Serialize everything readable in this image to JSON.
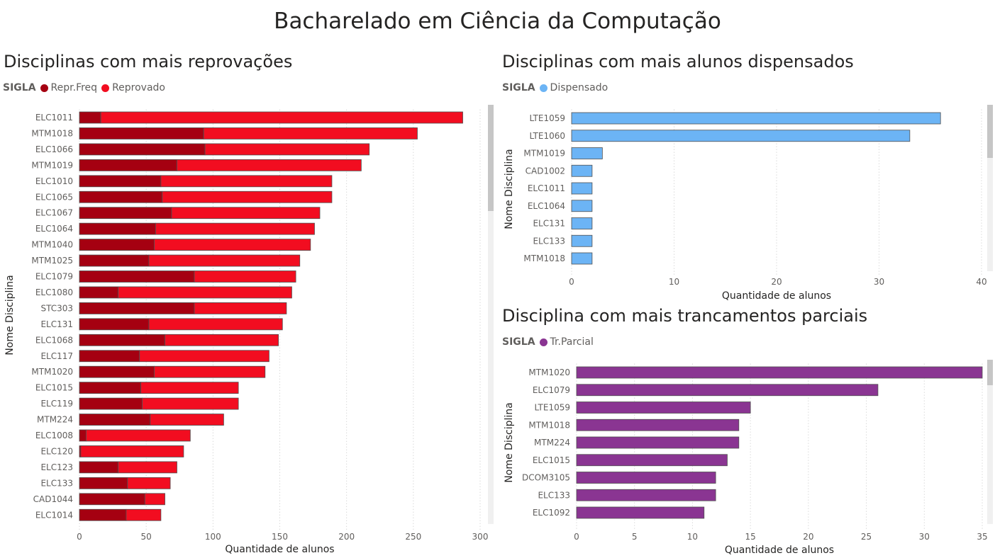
{
  "page": {
    "title": "Bacharelado em Ciência da Computação"
  },
  "chart_data": [
    {
      "type": "bar",
      "orientation": "horizontal",
      "stacked": true,
      "title": "Disciplinas com mais reprovações",
      "legend_title": "SIGLA",
      "legend_position": "top-left",
      "xlabel": "Quantidade de alunos",
      "ylabel": "Nome Disciplina",
      "xlim": [
        0,
        300
      ],
      "xticks": [
        0,
        50,
        100,
        150,
        200,
        250,
        300
      ],
      "grid": true,
      "categories": [
        "ELC1011",
        "MTM1018",
        "ELC1066",
        "MTM1019",
        "ELC1010",
        "ELC1065",
        "ELC1067",
        "ELC1064",
        "MTM1040",
        "MTM1025",
        "ELC1079",
        "ELC1080",
        "STC303",
        "ELC131",
        "ELC1068",
        "ELC117",
        "MTM1020",
        "ELC1015",
        "ELC119",
        "MTM224",
        "ELC1008",
        "ELC120",
        "ELC123",
        "ELC133",
        "CAD1044",
        "ELC1014"
      ],
      "series": [
        {
          "name": "Repr.Freq",
          "color": "#a50011",
          "values": [
            16,
            93,
            94,
            73,
            61,
            62,
            69,
            57,
            56,
            52,
            86,
            29,
            86,
            52,
            64,
            45,
            56,
            46,
            47,
            53,
            5,
            1,
            29,
            36,
            49,
            35
          ]
        },
        {
          "name": "Reprovado",
          "color": "#f20d20",
          "values": [
            271,
            160,
            123,
            138,
            128,
            127,
            111,
            119,
            117,
            113,
            76,
            130,
            69,
            100,
            85,
            97,
            83,
            73,
            72,
            55,
            78,
            77,
            44,
            32,
            15,
            26
          ]
        }
      ]
    },
    {
      "type": "bar",
      "orientation": "horizontal",
      "title": "Disciplinas com mais alunos dispensados",
      "legend_title": "SIGLA",
      "legend_position": "top-left",
      "xlabel": "Quantidade de alunos",
      "ylabel": "Nome Disciplina",
      "xlim": [
        0,
        40
      ],
      "xticks": [
        0,
        10,
        20,
        30,
        40
      ],
      "grid": true,
      "categories": [
        "LTE1059",
        "LTE1060",
        "MTM1019",
        "CAD1002",
        "ELC1011",
        "ELC1064",
        "ELC131",
        "ELC133",
        "MTM1018"
      ],
      "series": [
        {
          "name": "Dispensado",
          "color": "#6cb4f5",
          "values": [
            36,
            33,
            3,
            2,
            2,
            2,
            2,
            2,
            2
          ]
        }
      ]
    },
    {
      "type": "bar",
      "orientation": "horizontal",
      "title": "Disciplina com mais trancamentos parciais",
      "legend_title": "SIGLA",
      "legend_position": "top-left",
      "xlabel": "Quantidade de alunos",
      "ylabel": "Nome Disciplina",
      "xlim": [
        0,
        35
      ],
      "xticks": [
        0,
        5,
        10,
        15,
        20,
        25,
        30,
        35
      ],
      "grid": true,
      "categories": [
        "MTM1020",
        "ELC1079",
        "LTE1059",
        "MTM1018",
        "MTM224",
        "ELC1015",
        "DCOM3105",
        "ELC133",
        "ELC1092"
      ],
      "series": [
        {
          "name": "Tr.Parcial",
          "color": "#8a3592",
          "values": [
            35,
            26,
            15,
            14,
            14,
            13,
            12,
            12,
            11
          ]
        }
      ]
    }
  ]
}
